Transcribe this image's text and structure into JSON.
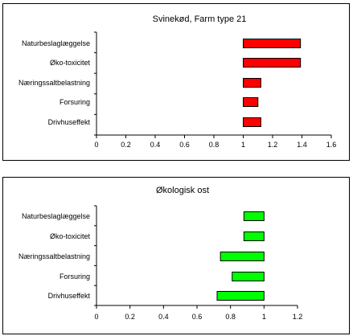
{
  "chart_data": [
    {
      "type": "bar",
      "orientation": "horizontal",
      "title": "Svinekød, Farm type 21",
      "categories": [
        "Naturbeslaglæggelse",
        "Øko-toxicitet",
        "Næringssaltbelastning",
        "Forsuring",
        "Drivhuseffekt"
      ],
      "ranges": [
        [
          1.0,
          1.39
        ],
        [
          1.0,
          1.39
        ],
        [
          1.0,
          1.12
        ],
        [
          1.0,
          1.1
        ],
        [
          1.0,
          1.12
        ]
      ],
      "xlim": [
        0,
        1.6
      ],
      "xticks": [
        "0",
        "0.2",
        "0.4",
        "0.6",
        "0.8",
        "1",
        "1.2",
        "1.4",
        "1.6"
      ],
      "bar_color": "#ff0000",
      "grid": false,
      "legend": "none"
    },
    {
      "type": "bar",
      "orientation": "horizontal",
      "title": "Økologisk ost",
      "categories": [
        "Naturbeslaglæggelse",
        "Øko-toxicitet",
        "Næringssaltbelastning",
        "Forsuring",
        "Drivhuseffekt"
      ],
      "ranges": [
        [
          0.88,
          1.0
        ],
        [
          0.88,
          1.0
        ],
        [
          0.74,
          1.0
        ],
        [
          0.81,
          1.0
        ],
        [
          0.72,
          1.0
        ]
      ],
      "xlim": [
        0,
        1.2
      ],
      "xticks": [
        "0",
        "0.2",
        "0.4",
        "0.6",
        "0.8",
        "1",
        "1.2"
      ],
      "bar_color": "#00ff00",
      "grid": false,
      "legend": "none"
    }
  ]
}
